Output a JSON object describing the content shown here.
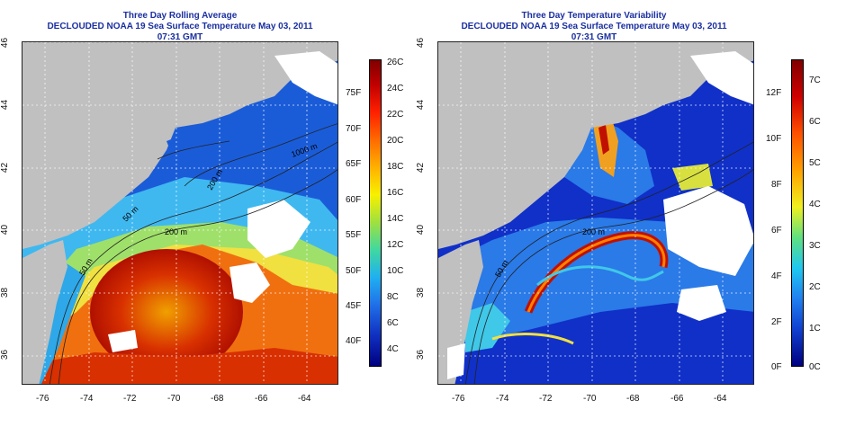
{
  "left_panel": {
    "title_line1": "Three Day Rolling Average",
    "title_line2": "DECLOUDED NOAA 19 Sea Surface Temperature May 03, 2011 07:31 GMT",
    "contour_labels": [
      "200 m",
      "50 m",
      "50 m",
      "200 m",
      "1000 m"
    ],
    "colorbar_celsius": [
      "26C",
      "24C",
      "22C",
      "20C",
      "18C",
      "16C",
      "14C",
      "12C",
      "10C",
      "8C",
      "6C",
      "4C"
    ],
    "colorbar_fahrenheit": [
      "75F",
      "70F",
      "65F",
      "60F",
      "55F",
      "50F",
      "45F",
      "40F"
    ]
  },
  "right_panel": {
    "title_line1": "Three Day Temperature Variability",
    "title_line2": "DECLOUDED NOAA 19 Sea Surface Temperature May 03, 2011 07:31 GMT",
    "contour_labels": [
      "200 m",
      "50 m"
    ],
    "colorbar_fahrenheit": [
      "12F",
      "10F",
      "8F",
      "6F",
      "4F",
      "2F",
      "0F"
    ],
    "colorbar_celsius": [
      "7C",
      "6C",
      "5C",
      "4C",
      "3C",
      "2C",
      "1C",
      "0C"
    ]
  },
  "lon_labels": [
    "-76",
    "-74",
    "-72",
    "-70",
    "-68",
    "-66",
    "-64"
  ],
  "lat_labels": [
    "46",
    "44",
    "42",
    "40",
    "38",
    "36"
  ],
  "colors": {
    "title": "#1a2fa0",
    "land": "#c0c0c0",
    "cloud": "#ffffff"
  }
}
